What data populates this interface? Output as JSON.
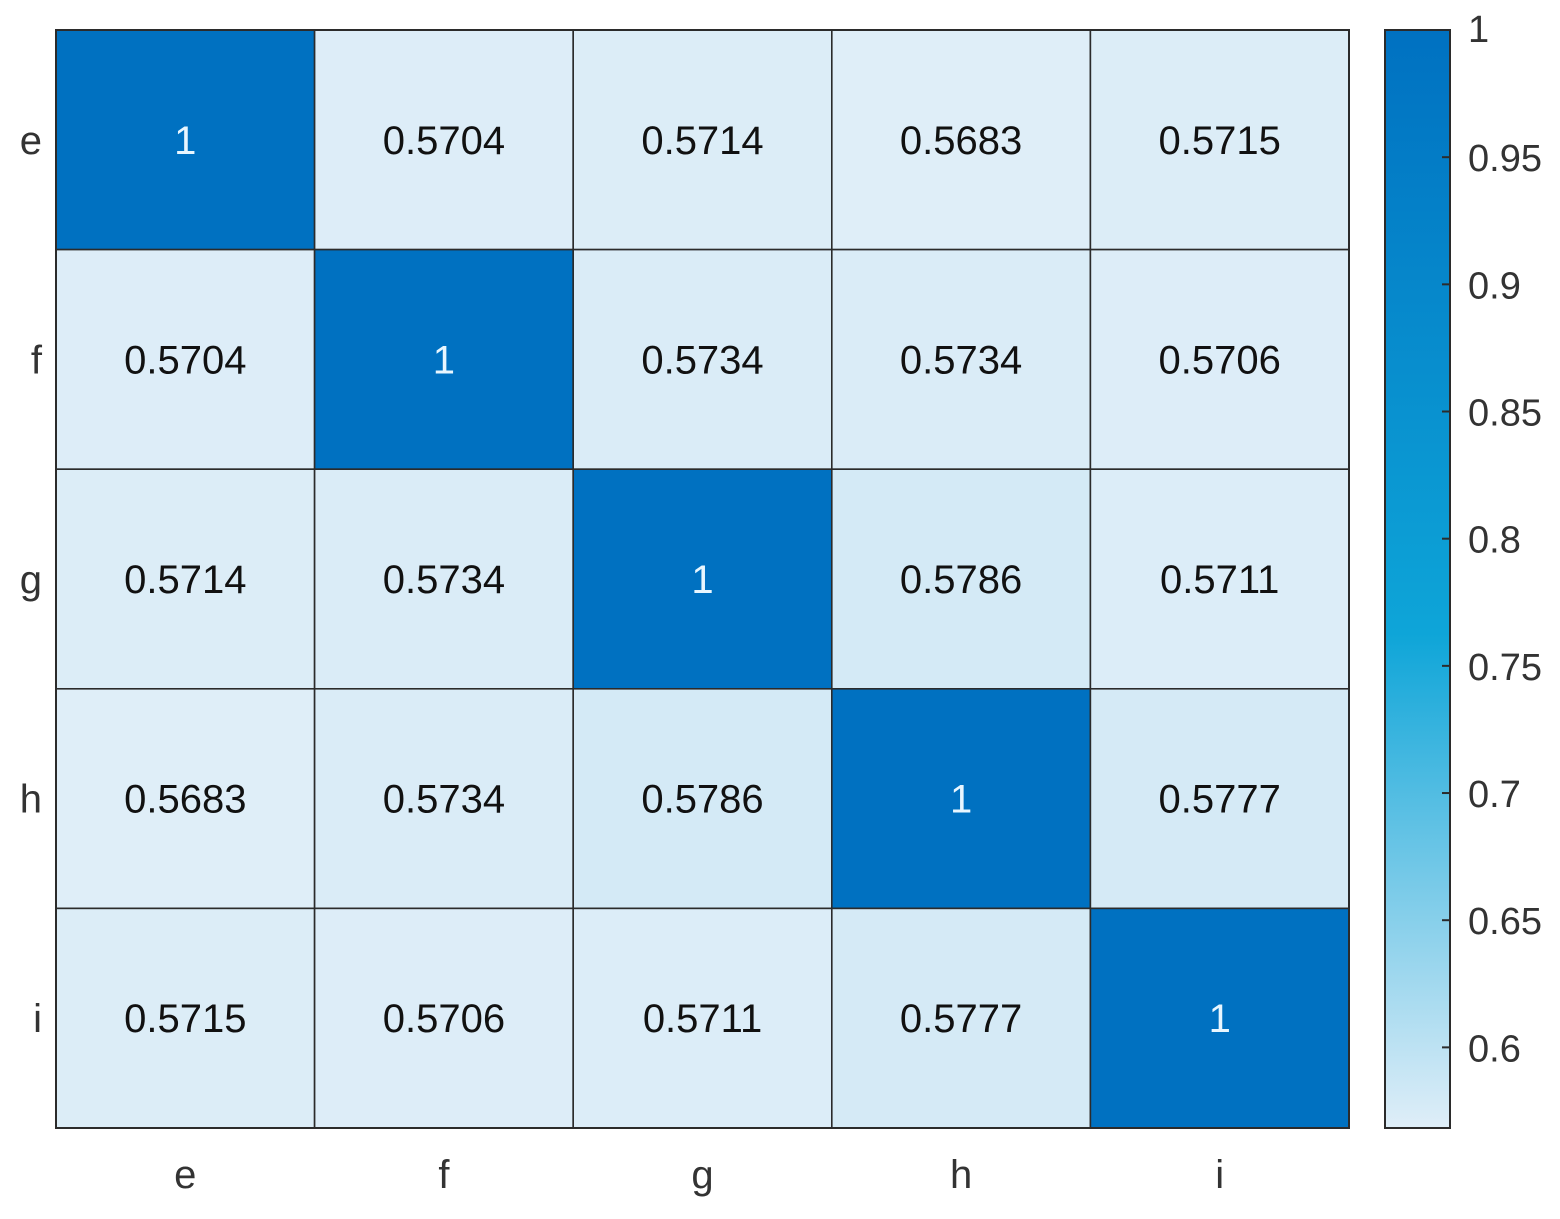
{
  "chart_data": {
    "type": "heatmap",
    "title": "",
    "xlabel": "",
    "ylabel": "",
    "x_categories": [
      "e",
      "f",
      "g",
      "h",
      "i"
    ],
    "y_categories": [
      "e",
      "f",
      "g",
      "h",
      "i"
    ],
    "values": [
      [
        1,
        0.5704,
        0.5714,
        0.5683,
        0.5715
      ],
      [
        0.5704,
        1,
        0.5734,
        0.5734,
        0.5706
      ],
      [
        0.5714,
        0.5734,
        1,
        0.5786,
        0.5711
      ],
      [
        0.5683,
        0.5734,
        0.5786,
        1,
        0.5777
      ],
      [
        0.5715,
        0.5706,
        0.5711,
        0.5777,
        1
      ]
    ],
    "colorbar": {
      "range": [
        0.5683,
        1
      ],
      "ticks": [
        1,
        0.95,
        0.9,
        0.85,
        0.8,
        0.75,
        0.7,
        0.65,
        0.6
      ],
      "tick_labels": [
        "1",
        "0.95",
        "0.9",
        "0.85",
        "0.8",
        "0.75",
        "0.7",
        "0.65",
        "0.6"
      ],
      "colors": {
        "low": "#dfeef8",
        "mid": "#0ea5d8",
        "high": "#0071c1"
      },
      "placement": "right"
    },
    "cell_text_colors": {
      "dark_cell": "#e8f6ff",
      "light_cell": "#111111"
    },
    "grid": true
  }
}
